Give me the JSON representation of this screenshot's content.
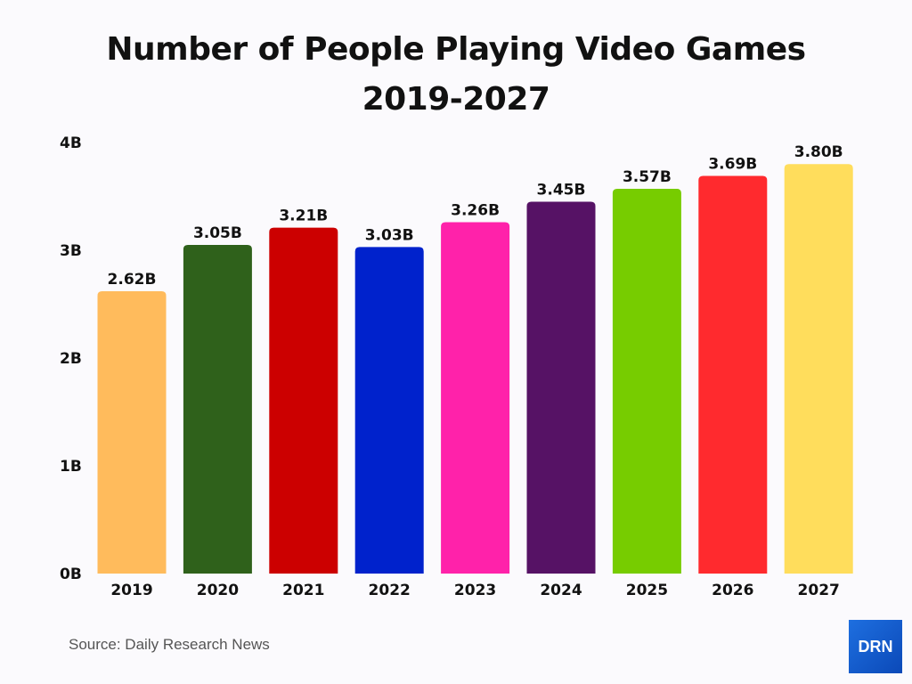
{
  "chart_data": {
    "type": "bar",
    "title_line1": "Number of People Playing Video Games",
    "title_line2": "2019-2027",
    "categories": [
      "2019",
      "2020",
      "2021",
      "2022",
      "2023",
      "2024",
      "2025",
      "2026",
      "2027"
    ],
    "values": [
      2.62,
      3.05,
      3.21,
      3.03,
      3.26,
      3.45,
      3.57,
      3.69,
      3.8
    ],
    "data_labels": [
      "2.62B",
      "3.05B",
      "3.21B",
      "3.03B",
      "3.26B",
      "3.45B",
      "3.57B",
      "3.69B",
      "3.80B"
    ],
    "colors": [
      "#ffbb5c",
      "#2f611b",
      "#cc0000",
      "#0022cc",
      "#ff22aa",
      "#561265",
      "#77cc00",
      "#ff2a2e",
      "#ffdd5c"
    ],
    "unit": "B",
    "ylim": [
      0,
      4
    ],
    "yticks": [
      "0B",
      "1B",
      "2B",
      "3B",
      "4B"
    ],
    "xlabel": "",
    "ylabel": "",
    "grid": false
  },
  "footer": {
    "source": "Source: Daily Research News",
    "logo_text": "DRN"
  }
}
